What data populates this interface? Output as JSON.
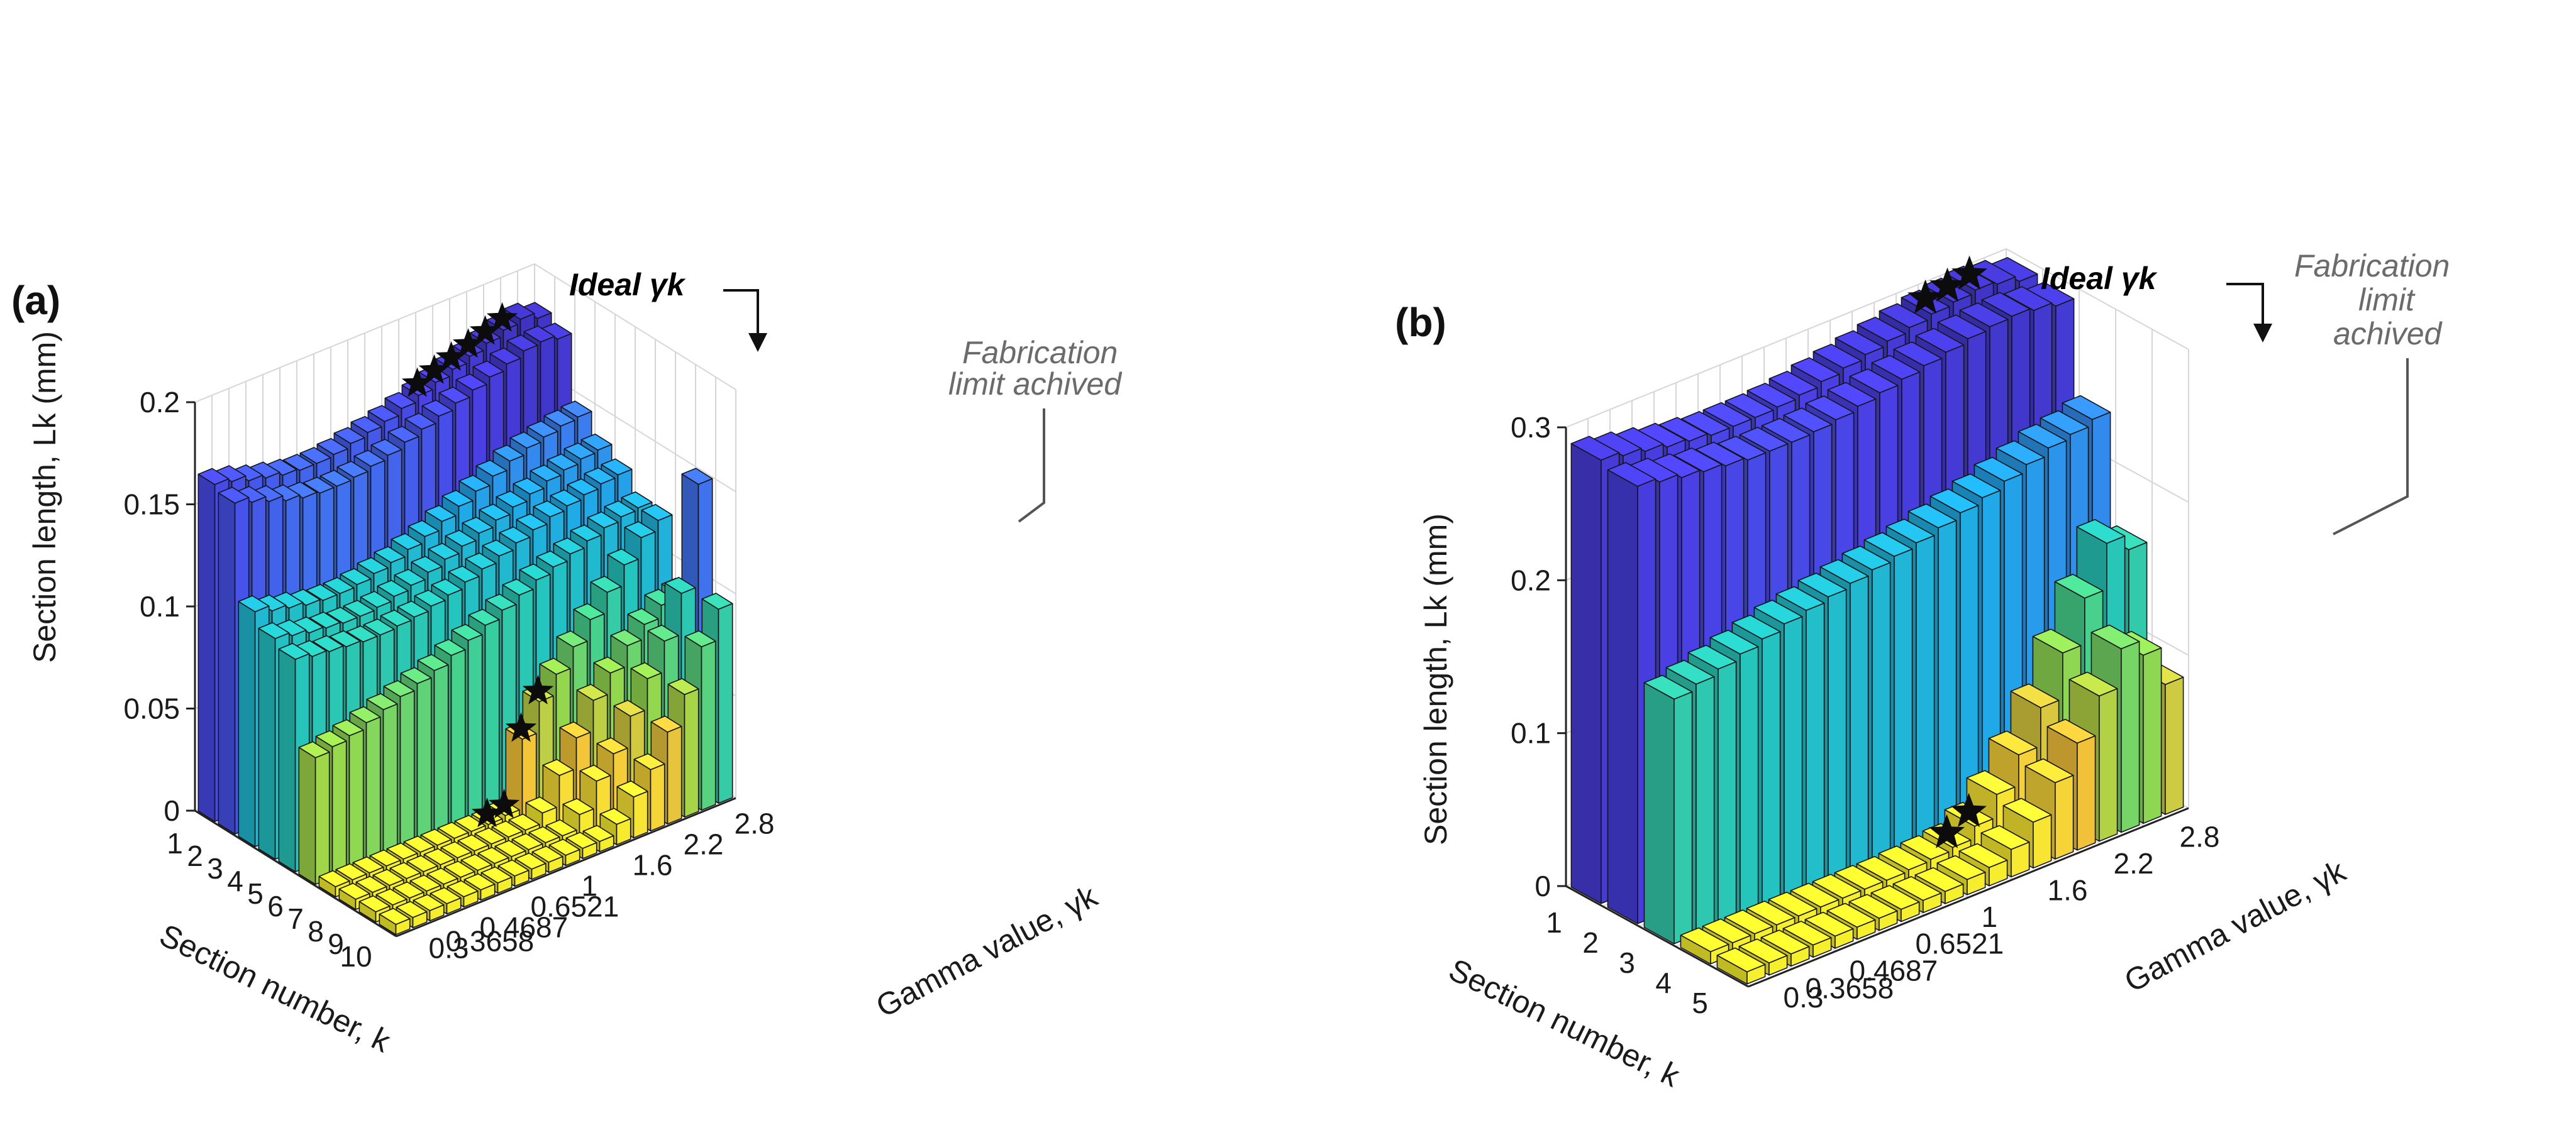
{
  "colors": {
    "viridis": [
      "#3b2fb5",
      "#4a40e6",
      "#3f78f0",
      "#1fa9e8",
      "#23c4c0",
      "#47d18c",
      "#9ad84a",
      "#f2c13a",
      "#f8e335",
      "#f5f22a"
    ]
  },
  "chart_data": [
    {
      "type": "bar3d",
      "panel_label": "(a)",
      "xlabel": "Section number, k",
      "ylabel": "Gamma value, γk",
      "zlabel": "Section length, Lk (mm)",
      "zlim": [
        0,
        0.2
      ],
      "zticks": [
        "0",
        "0.05",
        "0.1",
        "0.15",
        "0.2"
      ],
      "sections": [
        "1",
        "2",
        "3",
        "4",
        "5",
        "6",
        "7",
        "8",
        "9",
        "10"
      ],
      "gamma_labels": [
        "2.8",
        "2.2",
        "1.6",
        "1",
        "0.6521",
        "0.4687",
        "0.3658",
        "0.3"
      ],
      "gamma_count": 20,
      "gamma_label_rows": [
        18,
        15,
        12,
        9,
        6,
        3,
        1,
        0
      ],
      "annotations": {
        "ideal": "Ideal γk",
        "fabrication_line1": "Fabrication",
        "fabrication_line2": "limit achived"
      },
      "ideal_rows": [
        17,
        16,
        15,
        14,
        13,
        12
      ],
      "low_star_rows": [
        12,
        11,
        10,
        9
      ],
      "values": [
        [
          0.165,
          0.163,
          0.16,
          0.158,
          0.156,
          0.155,
          0.155,
          0.156,
          0.158,
          0.16,
          0.162,
          0.165,
          0.168,
          0.171,
          0.174,
          0.177,
          0.18,
          0.183,
          0.185,
          0.182
        ],
        [
          0.162,
          0.159,
          0.156,
          0.153,
          0.151,
          0.15,
          0.15,
          0.151,
          0.153,
          0.155,
          0.158,
          0.161,
          0.164,
          0.167,
          0.17,
          0.173,
          0.176,
          0.179,
          0.18,
          0.178
        ],
        [
          0.115,
          0.112,
          0.11,
          0.108,
          0.107,
          0.107,
          0.108,
          0.11,
          0.112,
          0.115,
          0.118,
          0.122,
          0.126,
          0.13,
          0.134,
          0.138,
          0.141,
          0.143,
          0.145,
          0.146
        ],
        [
          0.108,
          0.106,
          0.104,
          0.103,
          0.102,
          0.102,
          0.103,
          0.105,
          0.107,
          0.11,
          0.113,
          0.116,
          0.119,
          0.122,
          0.125,
          0.128,
          0.131,
          0.133,
          0.135,
          0.136
        ],
        [
          0.104,
          0.102,
          0.101,
          0.1,
          0.099,
          0.099,
          0.1,
          0.101,
          0.103,
          0.105,
          0.108,
          0.111,
          0.114,
          0.117,
          0.12,
          0.123,
          0.125,
          0.127,
          0.129,
          0.13
        ],
        [
          0.062,
          0.064,
          0.066,
          0.069,
          0.072,
          0.075,
          0.078,
          0.081,
          0.085,
          0.089,
          0.093,
          0.097,
          0.101,
          0.105,
          0.108,
          0.111,
          0.114,
          0.117,
          0.119,
          0.12
        ],
        [
          0.005,
          0.005,
          0.005,
          0.005,
          0.005,
          0.005,
          0.005,
          0.005,
          0.005,
          0.005,
          0.006,
          0.04,
          0.055,
          0.065,
          0.075,
          0.085,
          0.095,
          0.105,
          0.115,
          0.12
        ],
        [
          0.005,
          0.005,
          0.005,
          0.005,
          0.005,
          0.005,
          0.005,
          0.005,
          0.005,
          0.005,
          0.005,
          0.01,
          0.025,
          0.04,
          0.055,
          0.065,
          0.075,
          0.082,
          0.088,
          0.09
        ],
        [
          0.005,
          0.005,
          0.005,
          0.005,
          0.005,
          0.005,
          0.005,
          0.005,
          0.005,
          0.005,
          0.005,
          0.005,
          0.012,
          0.025,
          0.035,
          0.05,
          0.065,
          0.08,
          0.1,
          0.15
        ],
        [
          0.005,
          0.005,
          0.005,
          0.005,
          0.005,
          0.005,
          0.005,
          0.005,
          0.005,
          0.005,
          0.005,
          0.005,
          0.005,
          0.01,
          0.02,
          0.03,
          0.045,
          0.06,
          0.08,
          0.095
        ]
      ]
    },
    {
      "type": "bar3d",
      "panel_label": "(b)",
      "xlabel": "Section number, k",
      "ylabel": "Gamma value, γk",
      "zlabel": "Section length, Lk (mm)",
      "zlim": [
        0,
        0.3
      ],
      "zticks": [
        "0",
        "0.1",
        "0.2",
        "0.3"
      ],
      "sections": [
        "1",
        "2",
        "3",
        "4",
        "5"
      ],
      "gamma_labels": [
        "2.8",
        "2.2",
        "1.6",
        "1",
        "0.6521",
        "0.4687",
        "0.3658",
        "0.3"
      ],
      "gamma_count": 20,
      "gamma_label_rows": [
        18,
        15,
        12,
        9,
        6,
        3,
        1,
        0
      ],
      "annotations": {
        "ideal": "Ideal γk",
        "fabrication_line1": "Fabrication",
        "fabrication_line2": "limit",
        "fabrication_line3": "achived"
      },
      "ideal_rows": [
        17,
        16,
        15
      ],
      "low_star_rows": [
        12,
        11
      ],
      "values": [
        [
          0.29,
          0.287,
          0.284,
          0.281,
          0.279,
          0.277,
          0.277,
          0.277,
          0.278,
          0.28,
          0.283,
          0.286,
          0.289,
          0.292,
          0.295,
          0.298,
          0.3,
          0.302,
          0.3,
          0.296
        ],
        [
          0.286,
          0.283,
          0.28,
          0.278,
          0.276,
          0.274,
          0.274,
          0.274,
          0.275,
          0.277,
          0.28,
          0.283,
          0.286,
          0.289,
          0.292,
          0.295,
          0.297,
          0.298,
          0.296,
          0.293
        ],
        [
          0.16,
          0.164,
          0.168,
          0.172,
          0.176,
          0.18,
          0.183,
          0.186,
          0.189,
          0.192,
          0.195,
          0.198,
          0.202,
          0.206,
          0.21,
          0.215,
          0.22,
          0.225,
          0.228,
          0.232
        ],
        [
          0.008,
          0.008,
          0.008,
          0.008,
          0.008,
          0.008,
          0.008,
          0.008,
          0.008,
          0.009,
          0.01,
          0.012,
          0.02,
          0.035,
          0.055,
          0.08,
          0.11,
          0.14,
          0.17,
          0.16
        ],
        [
          0.008,
          0.008,
          0.008,
          0.008,
          0.008,
          0.008,
          0.008,
          0.008,
          0.008,
          0.008,
          0.01,
          0.012,
          0.018,
          0.03,
          0.05,
          0.07,
          0.095,
          0.12,
          0.11,
          0.085
        ]
      ]
    }
  ]
}
